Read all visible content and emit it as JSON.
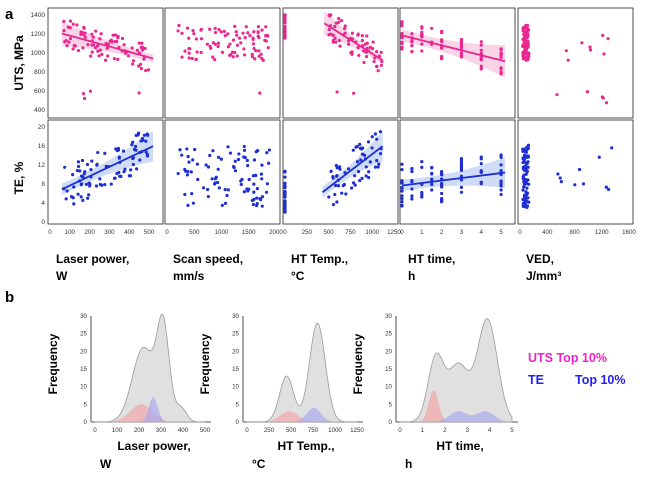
{
  "panel_labels": {
    "a": "a",
    "b": "b"
  },
  "colors": {
    "uts": "#e8278f",
    "uts_band": "#f6c6de",
    "te": "#1f2fd0",
    "te_band": "#bdd0f1",
    "gray": "#d6d6d6",
    "red": "#f2a7a7",
    "blue": "#a9a9f0",
    "legend_uts": "#ee22cc",
    "legend_te": "#2222ee"
  },
  "grid": {
    "uts_label": "UTS, MPa",
    "te_label": "TE, %",
    "uts_ticks": [
      "1400",
      "1200",
      "1000",
      "800",
      "600",
      "400"
    ],
    "te_ticks": [
      "20",
      "16",
      "12",
      "8",
      "4",
      "0"
    ],
    "columns": [
      {
        "ticks": [
          "0",
          "100",
          "200",
          "300",
          "400",
          "500"
        ],
        "title": "Laser power,",
        "unit": "W"
      },
      {
        "ticks": [
          "0",
          "500",
          "1000",
          "1500",
          "2000"
        ],
        "title": "Scan speed,",
        "unit": "mm/s"
      },
      {
        "ticks": [
          "0",
          "250",
          "500",
          "750",
          "1000",
          "1250"
        ],
        "title": "HT Temp.,",
        "unit": "°C"
      },
      {
        "ticks": [
          "0",
          "1",
          "2",
          "3",
          "4",
          "5"
        ],
        "title": "HT time,",
        "unit": "h"
      },
      {
        "ticks": [
          "0",
          "400",
          "800",
          "1200",
          "1600"
        ],
        "title": "VED,",
        "unit": "J/mm³"
      }
    ]
  },
  "chart_data": [
    {
      "type": "scatter",
      "panel": "UTS vs Laser power",
      "xlim": [
        0,
        550
      ],
      "ylim": [
        300,
        1400
      ],
      "x_ticks": [
        0,
        100,
        200,
        300,
        400,
        500
      ],
      "y_ticks": [
        400,
        600,
        800,
        1000,
        1200,
        1400
      ],
      "trend": [
        [
          60,
          1190
        ],
        [
          520,
          920
        ]
      ],
      "band": "converging"
    },
    {
      "type": "scatter",
      "panel": "UTS vs Scan speed",
      "xlim": [
        0,
        2000
      ],
      "ylim": [
        300,
        1400
      ],
      "x_ticks": [
        0,
        500,
        1000,
        1500,
        2000
      ],
      "y_ticks": [
        400,
        600,
        800,
        1000,
        1200,
        1400
      ]
    },
    {
      "type": "scatter",
      "panel": "UTS vs HT Temp.",
      "xlim": [
        0,
        1250
      ],
      "ylim": [
        300,
        1400
      ],
      "x_ticks": [
        0,
        250,
        500,
        750,
        1000,
        1250
      ],
      "y_ticks": [
        400,
        600,
        800,
        1000,
        1200,
        1400
      ],
      "trend": [
        [
          450,
          1300
        ],
        [
          1120,
          900
        ]
      ],
      "band": "converging"
    },
    {
      "type": "scatter",
      "panel": "UTS vs HT time",
      "xlim": [
        0,
        5.5
      ],
      "ylim": [
        300,
        1400
      ],
      "x_ticks": [
        0,
        1,
        2,
        3,
        4,
        5
      ],
      "y_ticks": [
        400,
        600,
        800,
        1000,
        1200,
        1400
      ],
      "trend": [
        [
          0,
          1170
        ],
        [
          5.2,
          890
        ]
      ],
      "band": "diverging"
    },
    {
      "type": "scatter",
      "panel": "UTS vs VED",
      "xlim": [
        0,
        1600
      ],
      "ylim": [
        300,
        1400
      ],
      "x_ticks": [
        0,
        400,
        800,
        1200,
        1600
      ],
      "y_ticks": [
        400,
        600,
        800,
        1000,
        1200,
        1400
      ]
    },
    {
      "type": "scatter",
      "panel": "TE vs Laser power",
      "xlim": [
        0,
        550
      ],
      "ylim": [
        0,
        20
      ],
      "x_ticks": [
        0,
        100,
        200,
        300,
        400,
        500
      ],
      "y_ticks": [
        0,
        4,
        8,
        12,
        16,
        20
      ],
      "trend": [
        [
          60,
          6.8
        ],
        [
          520,
          15.8
        ]
      ],
      "band": "diverging"
    },
    {
      "type": "scatter",
      "panel": "TE vs Scan speed",
      "xlim": [
        0,
        2000
      ],
      "ylim": [
        0,
        20
      ],
      "x_ticks": [
        0,
        500,
        1000,
        1500,
        2000
      ],
      "y_ticks": [
        0,
        4,
        8,
        12,
        16,
        20
      ]
    },
    {
      "type": "scatter",
      "panel": "TE vs HT Temp.",
      "xlim": [
        0,
        1250
      ],
      "ylim": [
        0,
        20
      ],
      "x_ticks": [
        0,
        250,
        500,
        750,
        1000,
        1250
      ],
      "y_ticks": [
        0,
        4,
        8,
        12,
        16,
        20
      ],
      "trend": [
        [
          430,
          6.2
        ],
        [
          1120,
          15.8
        ]
      ],
      "band": "diverging"
    },
    {
      "type": "scatter",
      "panel": "TE vs HT time",
      "xlim": [
        0,
        5.5
      ],
      "ylim": [
        0,
        20
      ],
      "x_ticks": [
        0,
        1,
        2,
        3,
        4,
        5
      ],
      "y_ticks": [
        0,
        4,
        8,
        12,
        16,
        20
      ],
      "trend": [
        [
          0,
          7.6
        ],
        [
          5.2,
          10.3
        ]
      ],
      "band": "diverging"
    },
    {
      "type": "scatter",
      "panel": "TE vs VED",
      "xlim": [
        0,
        1600
      ],
      "ylim": [
        0,
        20
      ],
      "x_ticks": [
        0,
        400,
        800,
        1200,
        1600
      ],
      "y_ticks": [
        0,
        4,
        8,
        12,
        16,
        20
      ]
    },
    {
      "type": "area",
      "panel": "Frequency vs Laser power",
      "xlim": [
        0,
        500
      ],
      "ylim": [
        0,
        30
      ],
      "x_ticks": [
        0,
        100,
        200,
        300,
        400,
        500
      ],
      "y_ticks": [
        0,
        5,
        10,
        15,
        20,
        25,
        30
      ],
      "series": [
        {
          "peaks": [
            [
              220,
              21,
              50
            ],
            [
              310,
              26,
              28
            ],
            [
              390,
              4,
              25
            ]
          ]
        },
        {
          "peaks": [
            [
              210,
              5,
              50
            ]
          ]
        },
        {
          "peaks": [
            [
              265,
              7,
              20
            ]
          ]
        }
      ]
    },
    {
      "type": "area",
      "panel": "Frequency vs HT Temp.",
      "xlim": [
        0,
        1250
      ],
      "ylim": [
        0,
        30
      ],
      "x_ticks": [
        0,
        250,
        500,
        750,
        1000,
        1250
      ],
      "y_ticks": [
        0,
        5,
        10,
        15,
        20,
        25,
        30
      ],
      "series": [
        {
          "peaks": [
            [
              450,
              13,
              80
            ],
            [
              800,
              28,
              90
            ]
          ]
        },
        {
          "peaks": [
            [
              480,
              3,
              100
            ]
          ]
        },
        {
          "peaks": [
            [
              760,
              4,
              80
            ]
          ]
        }
      ]
    },
    {
      "type": "area",
      "panel": "Frequency vs HT time",
      "xlim": [
        0,
        5
      ],
      "ylim": [
        0,
        30
      ],
      "x_ticks": [
        0,
        1,
        2,
        3,
        4,
        5
      ],
      "y_ticks": [
        0,
        5,
        10,
        15,
        20,
        25,
        30
      ],
      "series": [
        {
          "peaks": [
            [
              1.6,
              18,
              0.35
            ],
            [
              2.6,
              16,
              0.45
            ],
            [
              3.9,
              29,
              0.45
            ]
          ]
        },
        {
          "peaks": [
            [
              1.5,
              9,
              0.22
            ]
          ]
        },
        {
          "peaks": [
            [
              2.6,
              3,
              0.4
            ],
            [
              3.8,
              3,
              0.4
            ]
          ]
        }
      ]
    }
  ],
  "bottom": {
    "ylabel": "Frequency",
    "panels": [
      {
        "xlabel": "Laser power,",
        "unit": "W"
      },
      {
        "xlabel": "HT Temp.,",
        "unit": "°C"
      },
      {
        "xlabel": "HT time,",
        "unit": "h"
      }
    ]
  },
  "legend": {
    "uts": "UTS Top 10%",
    "te_a": "TE",
    "te_b": "Top 10%"
  }
}
